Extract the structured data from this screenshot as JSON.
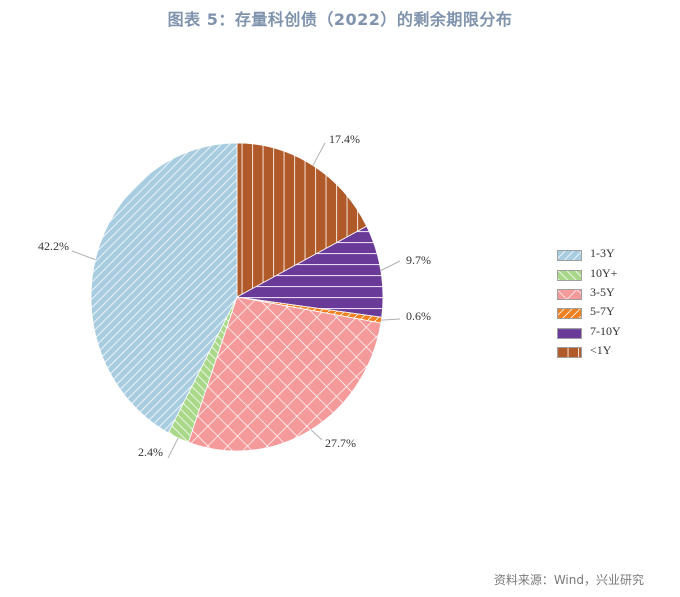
{
  "title": "图表 5：存量科创债（2022）的剩余期限分布",
  "source": "资料来源：Wind，兴业研究",
  "chart_data": {
    "type": "pie",
    "title": "图表 5：存量科创债（2022）的剩余期限分布",
    "start_angle": "12 o'clock, clockwise",
    "slices": [
      {
        "label": "<1Y",
        "value": 17.4,
        "display": "17.4%",
        "color": "#b05a2a",
        "pattern": "vertical"
      },
      {
        "label": "7-10Y",
        "value": 9.7,
        "display": "9.7%",
        "color": "#6a3a98",
        "pattern": "horizontal"
      },
      {
        "label": "5-7Y",
        "value": 0.6,
        "display": "0.6%",
        "color": "#f08020",
        "pattern": "dashed-diagonal"
      },
      {
        "label": "3-5Y",
        "value": 27.7,
        "display": "27.7%",
        "color": "#f59a9a",
        "pattern": "crosshatch"
      },
      {
        "label": "10Y+",
        "value": 2.4,
        "display": "2.4%",
        "color": "#a8d888",
        "pattern": "diagonal-up"
      },
      {
        "label": "1-3Y",
        "value": 42.2,
        "display": "42.2%",
        "color": "#a8cce0",
        "pattern": "diagonal-down"
      }
    ],
    "legend": {
      "position": "right",
      "entries": [
        "1-3Y",
        "10Y+",
        "3-5Y",
        "5-7Y",
        "7-10Y",
        "<1Y"
      ]
    }
  },
  "legend_items": [
    {
      "label": "1-3Y",
      "color": "#a8cce0",
      "pattern": "diagonal-down"
    },
    {
      "label": "10Y+",
      "color": "#a8d888",
      "pattern": "diagonal-up"
    },
    {
      "label": "3-5Y",
      "color": "#f59a9a",
      "pattern": "crosshatch"
    },
    {
      "label": "5-7Y",
      "color": "#f08020",
      "pattern": "dashed-diagonal"
    },
    {
      "label": "7-10Y",
      "color": "#6a3a98",
      "pattern": "horizontal"
    },
    {
      "label": "<1Y",
      "color": "#b05a2a",
      "pattern": "vertical"
    }
  ]
}
